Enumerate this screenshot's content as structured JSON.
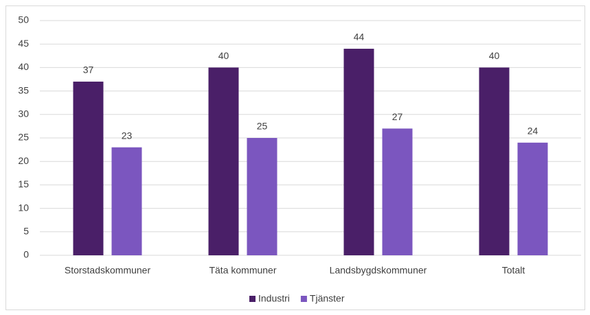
{
  "chart_data": {
    "type": "bar",
    "categories": [
      "Storstadskommuner",
      "Täta kommuner",
      "Landsbygdskommuner",
      "Totalt"
    ],
    "series": [
      {
        "name": "Industri",
        "color": "#4a1f68",
        "values": [
          37,
          40,
          44,
          40
        ]
      },
      {
        "name": "Tjänster",
        "color": "#7b56bf",
        "values": [
          23,
          25,
          27,
          24
        ]
      }
    ],
    "ylim": [
      0,
      50
    ],
    "yticks": [
      0,
      5,
      10,
      15,
      20,
      25,
      30,
      35,
      40,
      45,
      50
    ],
    "grid": true,
    "legend": "bottom"
  }
}
